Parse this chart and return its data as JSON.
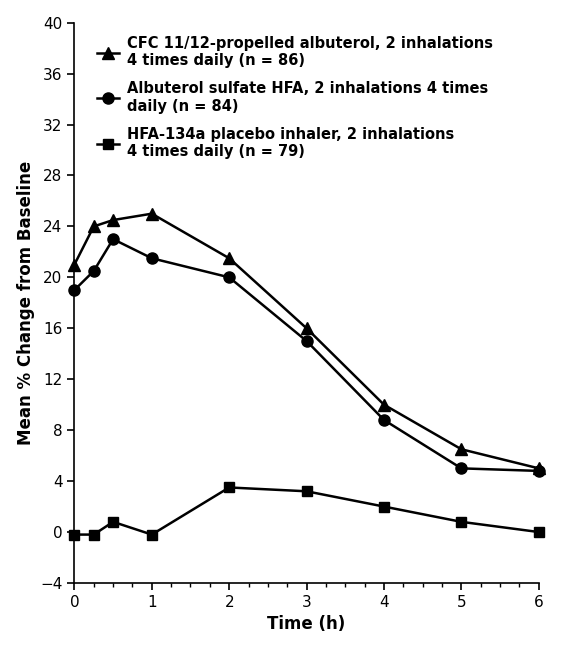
{
  "xlabel": "Time (h)",
  "ylabel": "Mean % Change from Baseline",
  "xlim": [
    0,
    6
  ],
  "ylim": [
    -4,
    40
  ],
  "yticks": [
    -4,
    0,
    4,
    8,
    12,
    16,
    20,
    24,
    28,
    32,
    36,
    40
  ],
  "xticks": [
    0,
    1,
    2,
    3,
    4,
    5,
    6
  ],
  "series": [
    {
      "label": "CFC 11/12-propelled albuterol, 2 inhalations\n4 times daily (n = 86)",
      "x": [
        0,
        0.25,
        0.5,
        1.0,
        2.0,
        3.0,
        4.0,
        5.0,
        6.0
      ],
      "y": [
        21.0,
        24.0,
        24.5,
        25.0,
        21.5,
        16.0,
        10.0,
        6.5,
        5.0
      ],
      "marker": "^",
      "markersize": 8,
      "color": "#000000",
      "linewidth": 1.8
    },
    {
      "label": "Albuterol sulfate HFA, 2 inhalations 4 times\ndaily (n = 84)",
      "x": [
        0,
        0.25,
        0.5,
        1.0,
        2.0,
        3.0,
        4.0,
        5.0,
        6.0
      ],
      "y": [
        19.0,
        20.5,
        23.0,
        21.5,
        20.0,
        15.0,
        8.8,
        5.0,
        4.8
      ],
      "marker": "o",
      "markersize": 8,
      "color": "#000000",
      "linewidth": 1.8
    },
    {
      "label": "HFA-134a placebo inhaler, 2 inhalations\n4 times daily (n = 79)",
      "x": [
        0,
        0.25,
        0.5,
        1.0,
        2.0,
        3.0,
        4.0,
        5.0,
        6.0
      ],
      "y": [
        -0.2,
        -0.2,
        0.8,
        -0.2,
        3.5,
        3.2,
        2.0,
        0.8,
        0.0
      ],
      "marker": "s",
      "markersize": 7,
      "color": "#000000",
      "linewidth": 1.8
    }
  ],
  "legend_loc": "upper left",
  "legend_fontsize": 10.5,
  "axis_fontsize": 12,
  "tick_fontsize": 11,
  "background_color": "#ffffff",
  "minor_xtick_interval": 0.25,
  "figure_width": 5.61,
  "figure_height": 6.5,
  "dpi": 100
}
